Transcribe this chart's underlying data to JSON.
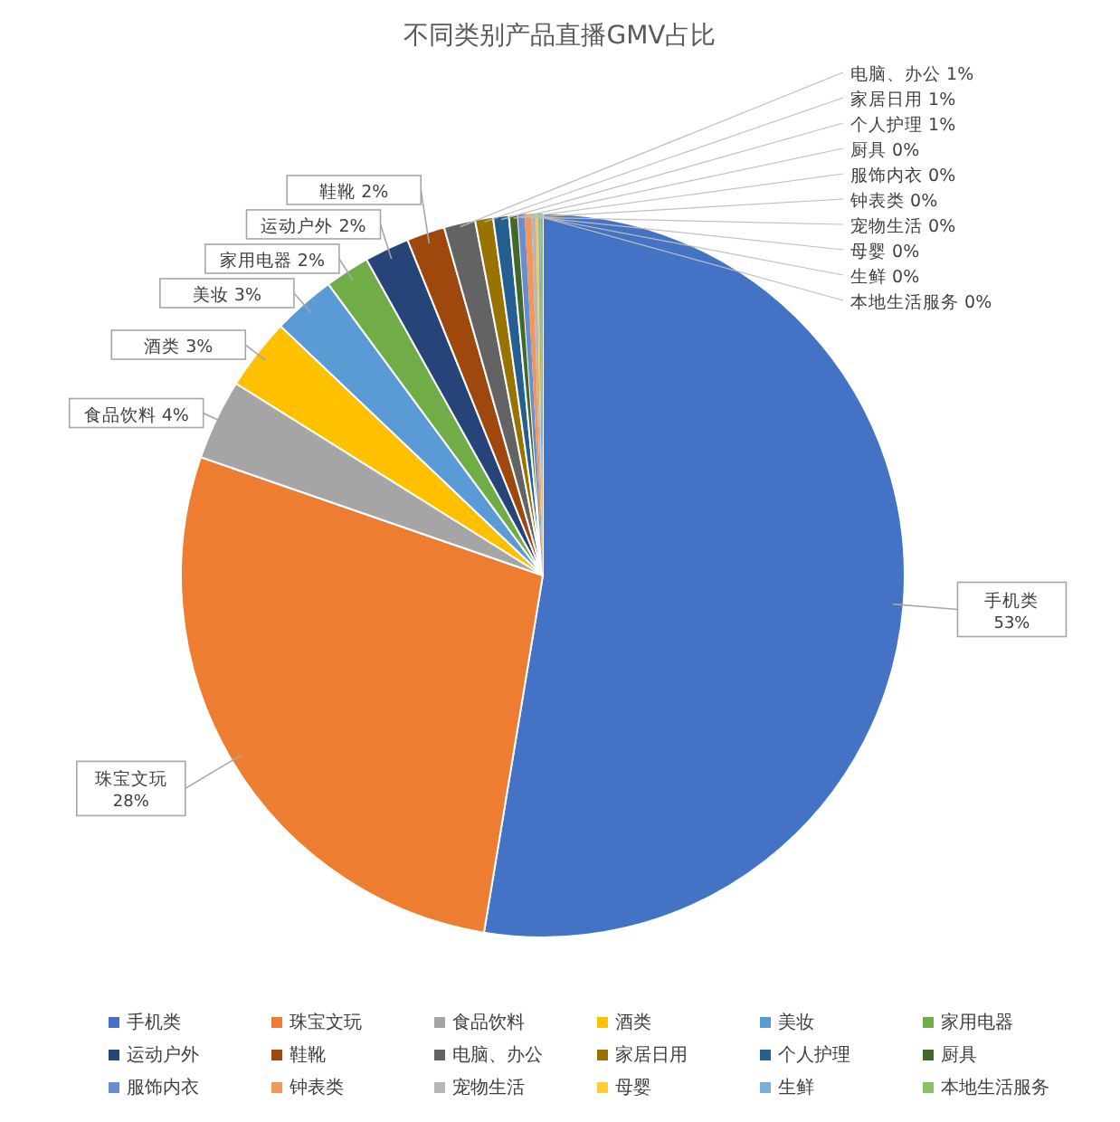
{
  "chart_data": {
    "type": "pie",
    "title": "不同类别产品直播GMV占比",
    "categories": [
      "手机类",
      "珠宝文玩",
      "食品饮料",
      "酒类",
      "美妆",
      "家用电器",
      "运动户外",
      "鞋靴",
      "电脑、办公",
      "家居日用",
      "个人护理",
      "厨具",
      "服饰内衣",
      "钟表类",
      "宠物生活",
      "母婴",
      "生鲜",
      "本地生活服务"
    ],
    "values": [
      52.6,
      27.7,
      3.6,
      3.2,
      2.8,
      2.0,
      2.0,
      1.7,
      1.4,
      0.8,
      0.7,
      0.4,
      0.3,
      0.3,
      0.2,
      0.1,
      0.1,
      0.1
    ],
    "colors": [
      "#4472c4",
      "#ed7d31",
      "#a5a5a5",
      "#ffc000",
      "#5b9bd5",
      "#70ad47",
      "#264478",
      "#9e480e",
      "#636363",
      "#997300",
      "#255e91",
      "#43682b",
      "#698ed0",
      "#f1975a",
      "#b7b7b7",
      "#ffcd33",
      "#7cafdd",
      "#8cc168"
    ],
    "value_labels": [
      "53%",
      "28%",
      "4%",
      "3%",
      "3%",
      "2%",
      "2%",
      "2%",
      "1%",
      "1%",
      "1%",
      "0%",
      "0%",
      "0%",
      "0%",
      "0%",
      "0%",
      "0%"
    ],
    "legend": "bottom"
  }
}
